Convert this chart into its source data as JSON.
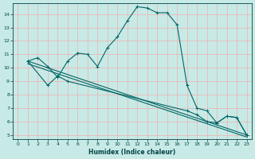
{
  "xlabel": "Humidex (Indice chaleur)",
  "bg_color": "#c8eae6",
  "grid_color": "#e8b8b8",
  "line_color": "#006666",
  "xlim": [
    -0.5,
    23.5
  ],
  "ylim": [
    4.7,
    14.8
  ],
  "yticks": [
    5,
    6,
    7,
    8,
    9,
    10,
    11,
    12,
    13,
    14
  ],
  "xticks": [
    0,
    1,
    2,
    3,
    4,
    5,
    6,
    7,
    8,
    9,
    10,
    11,
    12,
    13,
    14,
    15,
    16,
    17,
    18,
    19,
    20,
    21,
    22,
    23
  ],
  "curve1_x": [
    1,
    2,
    3,
    4,
    5,
    6,
    7,
    8,
    9,
    10,
    11,
    12,
    13,
    14,
    15,
    16,
    17,
    18,
    19,
    20,
    21,
    22,
    23
  ],
  "curve1_y": [
    10.5,
    10.75,
    10.1,
    9.3,
    10.5,
    11.1,
    11.0,
    10.1,
    11.5,
    12.3,
    13.5,
    14.55,
    14.45,
    14.1,
    14.1,
    13.2,
    8.7,
    7.0,
    6.8,
    5.9,
    6.4,
    6.3,
    5.0
  ],
  "curve2_x": [
    1,
    3,
    4,
    5,
    17,
    18,
    19,
    20,
    21,
    22,
    23
  ],
  "curve2_y": [
    10.5,
    8.7,
    9.4,
    9.0,
    6.8,
    6.5,
    6.0,
    5.9,
    6.4,
    6.3,
    5.0
  ],
  "curve3_x": [
    1,
    23
  ],
  "curve3_y": [
    10.5,
    5.0
  ],
  "curve4_x": [
    1,
    23
  ],
  "curve4_y": [
    10.3,
    4.85
  ]
}
